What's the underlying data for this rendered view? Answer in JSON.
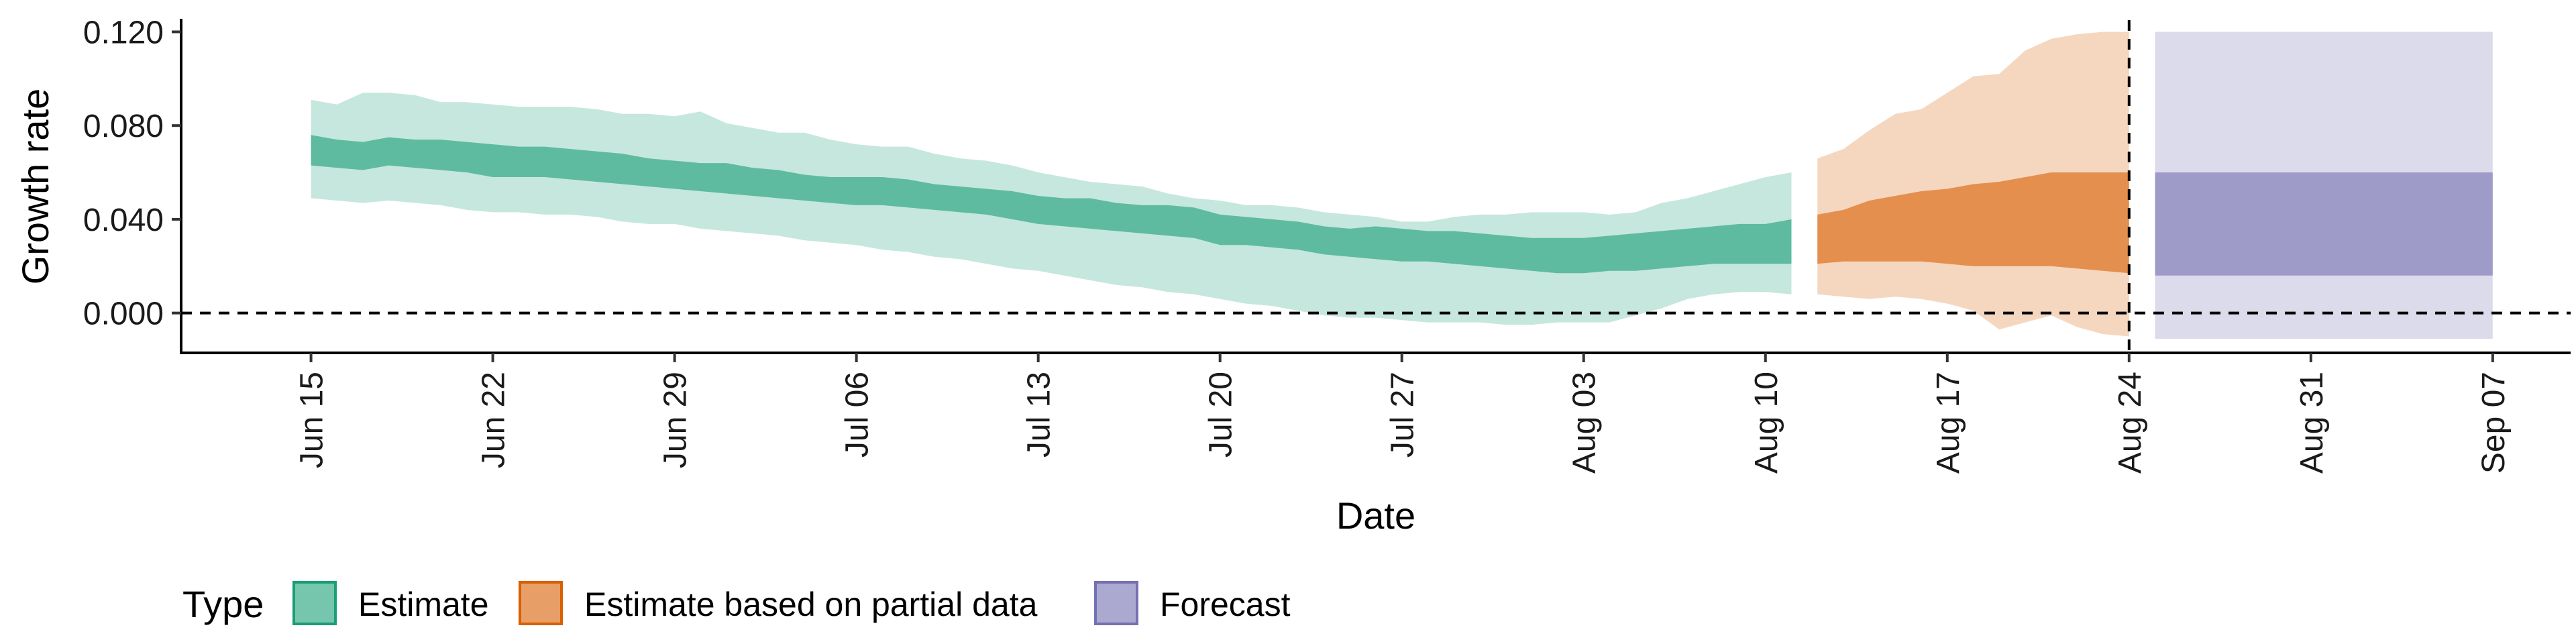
{
  "chart_data": {
    "type": "area",
    "xlabel": "Date",
    "ylabel": "Growth rate",
    "ylim": [
      -0.017,
      0.125
    ],
    "xlim": [
      "2020-06-10",
      "2020-09-10"
    ],
    "y_ticks": [
      "0.000",
      "0.040",
      "0.080",
      "0.120"
    ],
    "x_ticks": [
      {
        "date": "2020-06-15",
        "label": "Jun 15"
      },
      {
        "date": "2020-06-22",
        "label": "Jun 22"
      },
      {
        "date": "2020-06-29",
        "label": "Jun 29"
      },
      {
        "date": "2020-07-06",
        "label": "Jul 06"
      },
      {
        "date": "2020-07-13",
        "label": "Jul 13"
      },
      {
        "date": "2020-07-20",
        "label": "Jul 20"
      },
      {
        "date": "2020-07-27",
        "label": "Jul 27"
      },
      {
        "date": "2020-08-03",
        "label": "Aug 03"
      },
      {
        "date": "2020-08-10",
        "label": "Aug 10"
      },
      {
        "date": "2020-08-17",
        "label": "Aug 17"
      },
      {
        "date": "2020-08-24",
        "label": "Aug 24"
      },
      {
        "date": "2020-08-31",
        "label": "Aug 31"
      },
      {
        "date": "2020-09-07",
        "label": "Sep 07"
      }
    ],
    "reference_lines": [
      {
        "axis": "y",
        "value": 0,
        "style": "dashed"
      },
      {
        "axis": "x",
        "value": "2020-08-24",
        "style": "dashed"
      }
    ],
    "legend": {
      "title": "Type",
      "position": "bottom"
    },
    "series": [
      {
        "name": "Estimate",
        "color": "#1b9e77",
        "x": [
          "2020-06-15",
          "2020-06-16",
          "2020-06-17",
          "2020-06-18",
          "2020-06-19",
          "2020-06-20",
          "2020-06-21",
          "2020-06-22",
          "2020-06-23",
          "2020-06-24",
          "2020-06-25",
          "2020-06-26",
          "2020-06-27",
          "2020-06-28",
          "2020-06-29",
          "2020-06-30",
          "2020-07-01",
          "2020-07-02",
          "2020-07-03",
          "2020-07-04",
          "2020-07-05",
          "2020-07-06",
          "2020-07-07",
          "2020-07-08",
          "2020-07-09",
          "2020-07-10",
          "2020-07-11",
          "2020-07-12",
          "2020-07-13",
          "2020-07-14",
          "2020-07-15",
          "2020-07-16",
          "2020-07-17",
          "2020-07-18",
          "2020-07-19",
          "2020-07-20",
          "2020-07-21",
          "2020-07-22",
          "2020-07-23",
          "2020-07-24",
          "2020-07-25",
          "2020-07-26",
          "2020-07-27",
          "2020-07-28",
          "2020-07-29",
          "2020-07-30",
          "2020-07-31",
          "2020-08-01",
          "2020-08-02",
          "2020-08-03",
          "2020-08-04",
          "2020-08-05",
          "2020-08-06",
          "2020-08-07",
          "2020-08-08",
          "2020-08-09",
          "2020-08-10",
          "2020-08-11"
        ],
        "upper90": [
          0.091,
          0.089,
          0.094,
          0.094,
          0.093,
          0.09,
          0.09,
          0.089,
          0.088,
          0.088,
          0.088,
          0.087,
          0.085,
          0.085,
          0.084,
          0.086,
          0.081,
          0.079,
          0.077,
          0.077,
          0.074,
          0.072,
          0.071,
          0.071,
          0.068,
          0.066,
          0.065,
          0.063,
          0.06,
          0.058,
          0.056,
          0.055,
          0.054,
          0.051,
          0.049,
          0.048,
          0.046,
          0.046,
          0.045,
          0.043,
          0.042,
          0.041,
          0.039,
          0.039,
          0.041,
          0.042,
          0.042,
          0.043,
          0.043,
          0.043,
          0.042,
          0.043,
          0.047,
          0.049,
          0.052,
          0.055,
          0.058,
          0.06
        ],
        "upper50": [
          0.076,
          0.074,
          0.073,
          0.075,
          0.074,
          0.074,
          0.073,
          0.072,
          0.071,
          0.071,
          0.07,
          0.069,
          0.068,
          0.066,
          0.065,
          0.064,
          0.064,
          0.062,
          0.061,
          0.059,
          0.058,
          0.058,
          0.058,
          0.057,
          0.055,
          0.054,
          0.053,
          0.052,
          0.05,
          0.049,
          0.049,
          0.047,
          0.046,
          0.046,
          0.045,
          0.042,
          0.041,
          0.04,
          0.039,
          0.037,
          0.036,
          0.037,
          0.036,
          0.035,
          0.035,
          0.034,
          0.033,
          0.032,
          0.032,
          0.032,
          0.033,
          0.034,
          0.035,
          0.036,
          0.037,
          0.038,
          0.038,
          0.04
        ],
        "lower50": [
          0.063,
          0.062,
          0.061,
          0.063,
          0.062,
          0.061,
          0.06,
          0.058,
          0.058,
          0.058,
          0.057,
          0.056,
          0.055,
          0.054,
          0.053,
          0.052,
          0.051,
          0.05,
          0.049,
          0.048,
          0.047,
          0.046,
          0.046,
          0.045,
          0.044,
          0.043,
          0.042,
          0.04,
          0.038,
          0.037,
          0.036,
          0.035,
          0.034,
          0.033,
          0.032,
          0.029,
          0.029,
          0.028,
          0.027,
          0.025,
          0.024,
          0.023,
          0.022,
          0.022,
          0.021,
          0.02,
          0.019,
          0.018,
          0.017,
          0.017,
          0.018,
          0.018,
          0.019,
          0.02,
          0.021,
          0.021,
          0.021,
          0.021
        ],
        "lower90": [
          0.049,
          0.048,
          0.047,
          0.048,
          0.047,
          0.046,
          0.044,
          0.043,
          0.043,
          0.042,
          0.042,
          0.041,
          0.039,
          0.038,
          0.038,
          0.036,
          0.035,
          0.034,
          0.033,
          0.031,
          0.03,
          0.029,
          0.027,
          0.026,
          0.024,
          0.023,
          0.021,
          0.019,
          0.018,
          0.016,
          0.014,
          0.012,
          0.011,
          0.009,
          0.008,
          0.006,
          0.004,
          0.003,
          0.001,
          -0.001,
          -0.002,
          -0.002,
          -0.003,
          -0.004,
          -0.004,
          -0.004,
          -0.005,
          -0.005,
          -0.004,
          -0.004,
          -0.004,
          -0.001,
          0.002,
          0.006,
          0.008,
          0.009,
          0.009,
          0.008
        ]
      },
      {
        "name": "Estimate based on partial data",
        "color": "#d95f02",
        "x": [
          "2020-08-12",
          "2020-08-13",
          "2020-08-14",
          "2020-08-15",
          "2020-08-16",
          "2020-08-17",
          "2020-08-18",
          "2020-08-19",
          "2020-08-20",
          "2020-08-21",
          "2020-08-22",
          "2020-08-23",
          "2020-08-24"
        ],
        "upper90": [
          0.066,
          0.07,
          0.078,
          0.085,
          0.087,
          0.094,
          0.101,
          0.102,
          0.112,
          0.117,
          0.119,
          0.12,
          0.12
        ],
        "upper50": [
          0.042,
          0.044,
          0.048,
          0.05,
          0.052,
          0.053,
          0.055,
          0.056,
          0.058,
          0.06,
          0.06,
          0.06,
          0.06
        ],
        "lower50": [
          0.021,
          0.022,
          0.022,
          0.022,
          0.022,
          0.021,
          0.02,
          0.02,
          0.02,
          0.02,
          0.019,
          0.018,
          0.017
        ],
        "lower90": [
          0.008,
          0.007,
          0.006,
          0.007,
          0.006,
          0.004,
          0.001,
          -0.007,
          -0.004,
          -0.001,
          -0.006,
          -0.009,
          -0.01
        ]
      },
      {
        "name": "Forecast",
        "color": "#7570b3",
        "x": [
          "2020-08-25",
          "2020-09-07"
        ],
        "upper90": [
          0.12,
          0.12
        ],
        "upper50": [
          0.06,
          0.06
        ],
        "lower50": [
          0.016,
          0.016
        ],
        "lower90": [
          -0.011,
          -0.011
        ]
      }
    ]
  }
}
